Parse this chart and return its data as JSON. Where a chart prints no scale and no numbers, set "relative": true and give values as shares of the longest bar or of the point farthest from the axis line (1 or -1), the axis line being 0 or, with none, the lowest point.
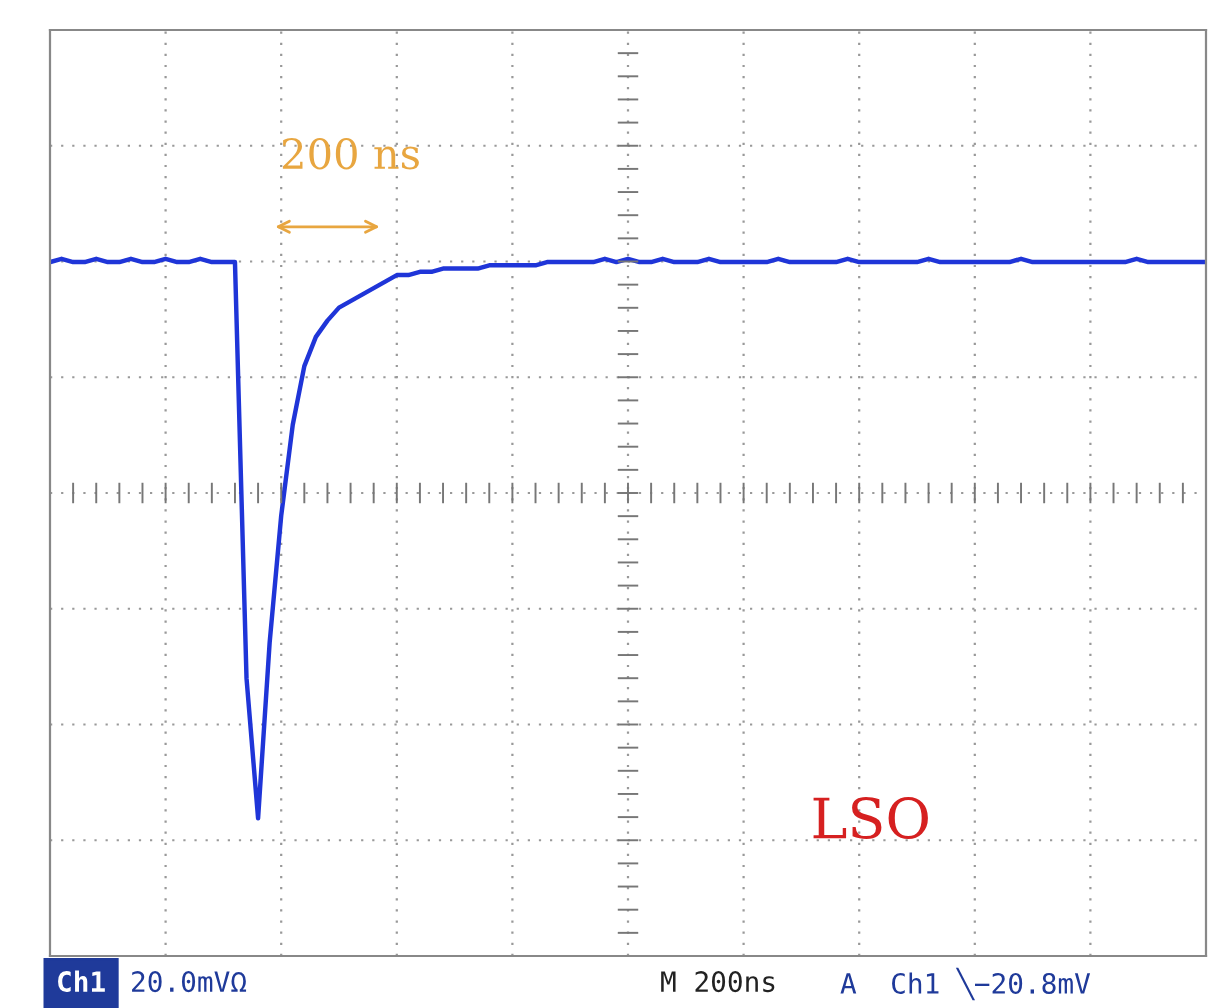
{
  "chart_data": {
    "type": "line",
    "relative": true,
    "grid": true,
    "marker": "none",
    "line_style": "solid",
    "categories": [
      null,
      null,
      null,
      null,
      null,
      null,
      null,
      null,
      null,
      null,
      null,
      null,
      null,
      null,
      null,
      null,
      null,
      null,
      null,
      null,
      null,
      null,
      null,
      null,
      null,
      null,
      null,
      null,
      null,
      null,
      null,
      null,
      null,
      null,
      null,
      null,
      null,
      null,
      null,
      null,
      null,
      null,
      null,
      null,
      null,
      null,
      null,
      null,
      null,
      null,
      null,
      null,
      null,
      null,
      null,
      null,
      null,
      null,
      null,
      null,
      null,
      null,
      null,
      null,
      null,
      null,
      null,
      null,
      null,
      null,
      null,
      null,
      null,
      null,
      null,
      null,
      null,
      null,
      null,
      null,
      null,
      null,
      null,
      null,
      null,
      null,
      null,
      null,
      null,
      null,
      null,
      null,
      null,
      null,
      null,
      null,
      null,
      null,
      null,
      null,
      null
    ],
    "series": [
      {
        "color": "#1f35d8",
        "values": [
          0.71,
          0.72,
          0.71,
          0.71,
          0.72,
          0.71,
          0.71,
          0.72,
          0.71,
          0.71,
          0.72,
          0.71,
          0.71,
          0.72,
          0.71,
          0.71,
          0.71,
          -0.57,
          -1,
          -0.46,
          -0.07,
          0.21,
          0.39,
          0.48,
          0.53,
          0.57,
          0.59,
          0.61,
          0.63,
          0.65,
          0.67,
          0.67,
          0.68,
          0.68,
          0.69,
          0.69,
          0.69,
          0.69,
          0.7,
          0.7,
          0.7,
          0.7,
          0.7,
          0.71,
          0.71,
          0.71,
          0.71,
          0.71,
          0.72,
          0.71,
          0.72,
          0.71,
          0.71,
          0.72,
          0.71,
          0.71,
          0.71,
          0.72,
          0.71,
          0.71,
          0.71,
          0.71,
          0.71,
          0.72,
          0.71,
          0.71,
          0.71,
          0.71,
          0.71,
          0.72,
          0.71,
          0.71,
          0.71,
          0.71,
          0.71,
          0.71,
          0.72,
          0.71,
          0.71,
          0.71,
          0.71,
          0.71,
          0.71,
          0.71,
          0.72,
          0.71,
          0.71,
          0.71,
          0.71,
          0.71,
          0.71,
          0.71,
          0.71,
          0.71,
          0.72,
          0.71,
          0.71,
          0.71,
          0.71,
          0.71,
          0.71
        ]
      }
    ],
    "annotations": [
      "200 ns",
      "LSO",
      "Ch1",
      "20.0mVΩ",
      "M 200ns",
      "A  Ch1 ╲−20.8mV"
    ]
  }
}
